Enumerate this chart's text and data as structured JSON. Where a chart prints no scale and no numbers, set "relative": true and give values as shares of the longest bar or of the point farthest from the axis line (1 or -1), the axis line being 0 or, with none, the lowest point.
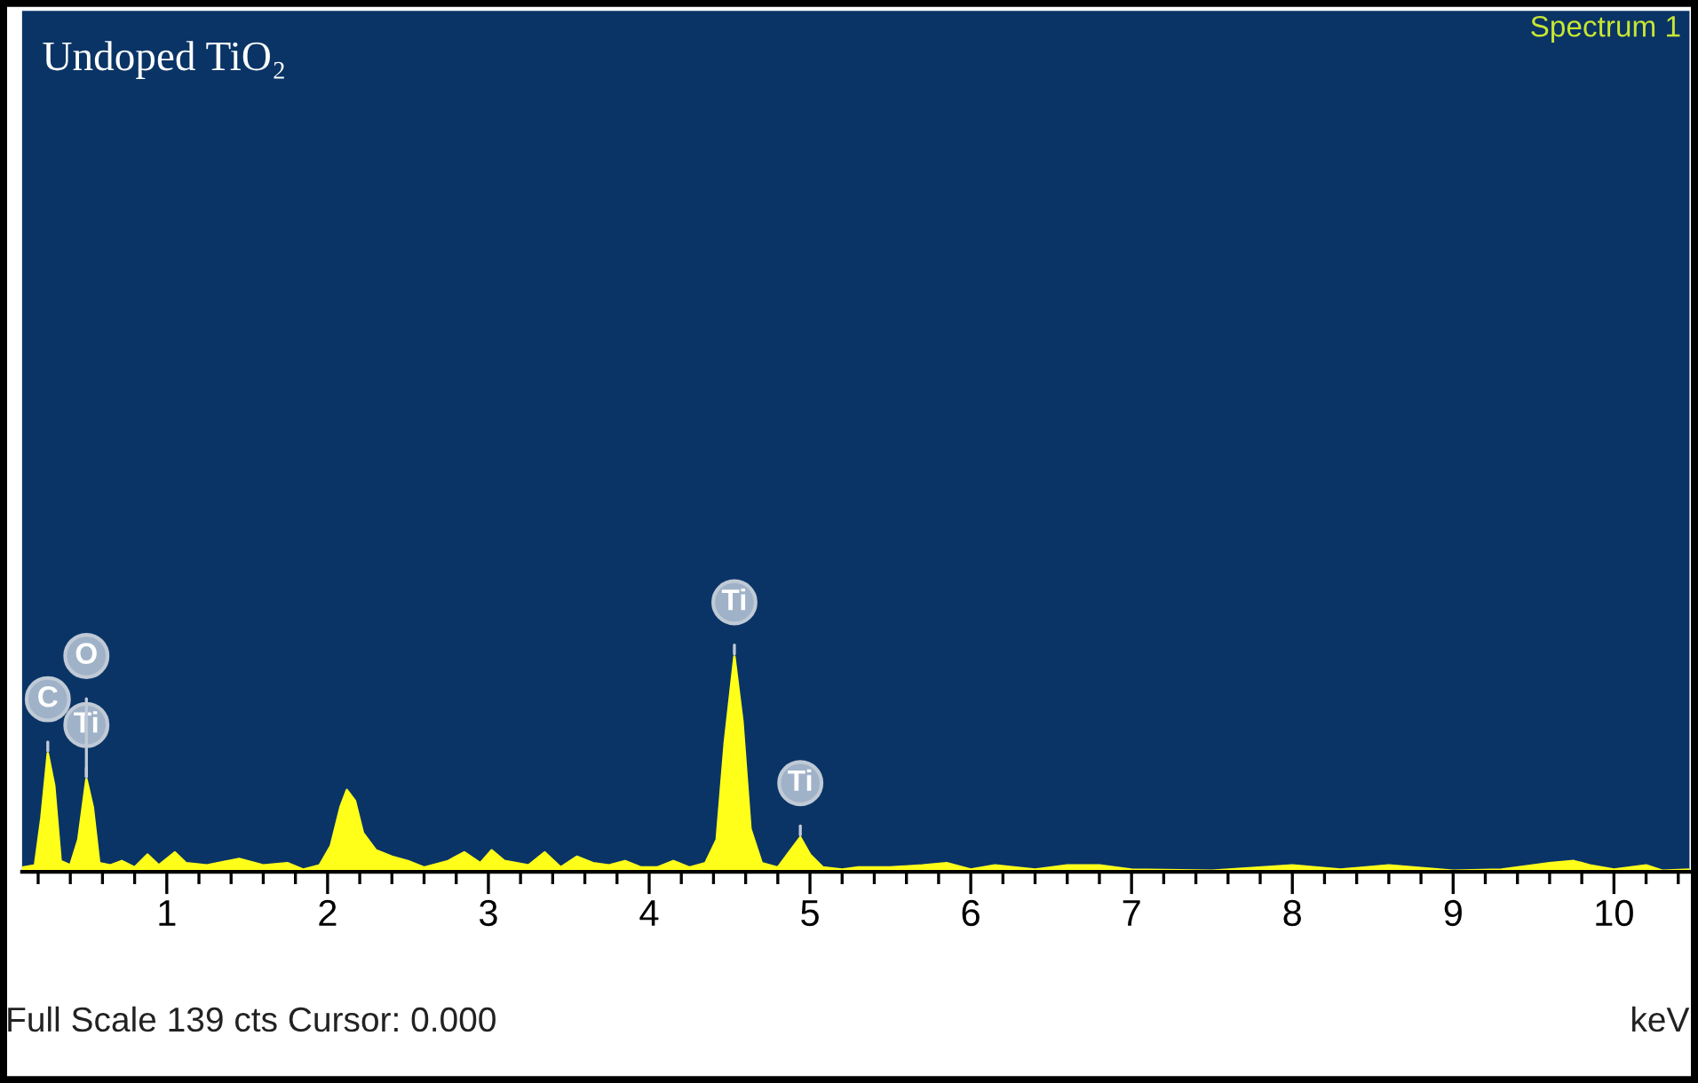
{
  "chart_data": {
    "type": "area",
    "relative": true,
    "title": "Undoped TiO₂",
    "subtitle": "Spectrum 1",
    "xlabel": "keV",
    "color": "#ffff1a",
    "tick_labels": "x",
    "grid": false,
    "x": [
      0.1,
      0.18,
      0.22,
      0.26,
      0.3,
      0.34,
      0.4,
      0.45,
      0.5,
      0.54,
      0.58,
      0.65,
      0.72,
      0.8,
      0.88,
      0.95,
      1.05,
      1.12,
      1.25,
      1.45,
      1.6,
      1.75,
      1.85,
      1.95,
      2.02,
      2.08,
      2.12,
      2.17,
      2.22,
      2.3,
      2.4,
      2.5,
      2.6,
      2.75,
      2.85,
      2.95,
      3.02,
      3.1,
      3.25,
      3.35,
      3.45,
      3.55,
      3.65,
      3.75,
      3.85,
      3.95,
      4.05,
      4.15,
      4.25,
      4.35,
      4.42,
      4.47,
      4.53,
      4.58,
      4.63,
      4.7,
      4.8,
      4.88,
      4.94,
      5.0,
      5.08,
      5.2,
      5.3,
      5.5,
      5.7,
      5.85,
      6.0,
      6.15,
      6.4,
      6.6,
      6.8,
      7.0,
      7.5,
      8.0,
      8.3,
      8.6,
      9.0,
      9.3,
      9.6,
      9.75,
      9.85,
      10.0,
      10.2,
      10.3,
      10.47
    ],
    "values": [
      0.02,
      0.03,
      0.25,
      0.55,
      0.4,
      0.05,
      0.03,
      0.15,
      0.43,
      0.3,
      0.04,
      0.03,
      0.05,
      0.02,
      0.08,
      0.03,
      0.09,
      0.04,
      0.03,
      0.06,
      0.03,
      0.04,
      0.01,
      0.03,
      0.12,
      0.3,
      0.38,
      0.33,
      0.18,
      0.1,
      0.07,
      0.05,
      0.02,
      0.05,
      0.09,
      0.04,
      0.1,
      0.05,
      0.03,
      0.09,
      0.02,
      0.07,
      0.04,
      0.03,
      0.05,
      0.02,
      0.02,
      0.05,
      0.02,
      0.04,
      0.15,
      0.6,
      1.0,
      0.7,
      0.2,
      0.04,
      0.02,
      0.1,
      0.16,
      0.08,
      0.02,
      0.01,
      0.02,
      0.02,
      0.03,
      0.04,
      0.01,
      0.03,
      0.01,
      0.03,
      0.03,
      0.01,
      0.005,
      0.03,
      0.01,
      0.03,
      0.005,
      0.01,
      0.04,
      0.05,
      0.03,
      0.01,
      0.03,
      0.005,
      0.01
    ],
    "xlim": [
      0.1,
      10.47
    ],
    "xticks": [
      {
        "value": 0.2,
        "label": null
      },
      {
        "value": 0.4,
        "label": null
      },
      {
        "value": 0.6,
        "label": null
      },
      {
        "value": 0.8,
        "label": null
      },
      1,
      {
        "value": 1.2,
        "label": null
      },
      {
        "value": 1.4,
        "label": null
      },
      {
        "value": 1.6,
        "label": null
      },
      {
        "value": 1.8,
        "label": null
      },
      2,
      {
        "value": 2.2,
        "label": null
      },
      {
        "value": 2.4,
        "label": null
      },
      {
        "value": 2.6,
        "label": null
      },
      {
        "value": 2.8,
        "label": null
      },
      3,
      {
        "value": 3.2,
        "label": null
      },
      {
        "value": 3.4,
        "label": null
      },
      {
        "value": 3.6,
        "label": null
      },
      {
        "value": 3.8,
        "label": null
      },
      4,
      {
        "value": 4.2,
        "label": null
      },
      {
        "value": 4.4,
        "label": null
      },
      {
        "value": 4.6,
        "label": null
      },
      {
        "value": 4.8,
        "label": null
      },
      5,
      {
        "value": 5.2,
        "label": null
      },
      {
        "value": 5.4,
        "label": null
      },
      {
        "value": 5.6,
        "label": null
      },
      {
        "value": 5.8,
        "label": null
      },
      6,
      {
        "value": 6.2,
        "label": null
      },
      {
        "value": 6.4,
        "label": null
      },
      {
        "value": 6.6,
        "label": null
      },
      {
        "value": 6.8,
        "label": null
      },
      7,
      {
        "value": 7.2,
        "label": null
      },
      {
        "value": 7.4,
        "label": null
      },
      {
        "value": 7.6,
        "label": null
      },
      {
        "value": 7.8,
        "label": null
      },
      8,
      {
        "value": 8.2,
        "label": null
      },
      {
        "value": 8.4,
        "label": null
      },
      {
        "value": 8.6,
        "label": null
      },
      {
        "value": 8.8,
        "label": null
      },
      9,
      {
        "value": 9.2,
        "label": null
      },
      {
        "value": 9.4,
        "label": null
      },
      {
        "value": 9.6,
        "label": null
      },
      {
        "value": 9.8,
        "label": null
      },
      10,
      {
        "value": 10.2,
        "label": null
      },
      {
        "value": 10.4,
        "label": null
      }
    ],
    "annotations": [
      {
        "text": "C",
        "x": 0.26,
        "y": 0.55
      },
      {
        "text": "Ti",
        "x": 0.5,
        "y": 0.43
      },
      {
        "text": "O",
        "x": 0.5,
        "y": 0.43
      },
      {
        "text": "Ti",
        "x": 4.53,
        "y": 1.0
      },
      {
        "text": "Ti",
        "x": 4.94,
        "y": 0.16
      },
      "Full Scale 139 cts Cursor: 0.000"
    ]
  }
}
